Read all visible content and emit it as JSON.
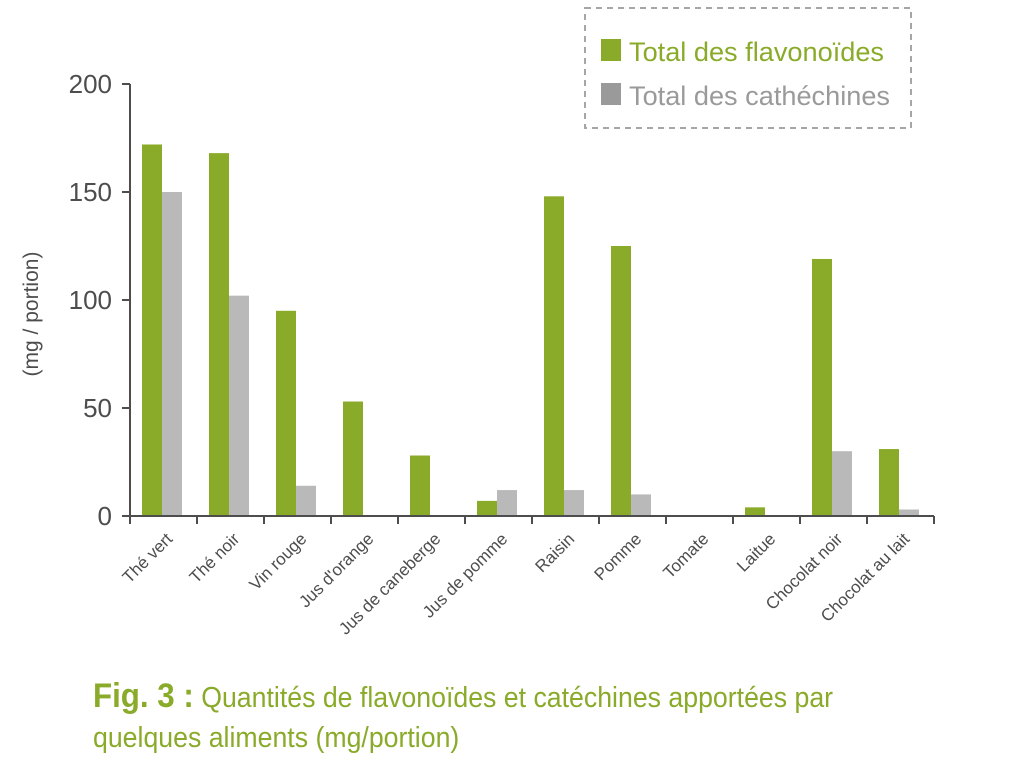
{
  "caption": {
    "fig_label": "Fig. 3 :",
    "text": "Quantités de flavonoïdes et catéchines apportées par quelques aliments (mg/portion)"
  },
  "colors": {
    "flavonoides": "#8aab2a",
    "catechines": "#b9b9b9",
    "axis": "#4d4d4d",
    "legend_border": "#a6a6a6"
  },
  "chart_data": {
    "type": "bar",
    "title": "",
    "xlabel": "",
    "ylabel": "(mg / portion)",
    "ylim": [
      0,
      200
    ],
    "yticks": [
      0,
      50,
      100,
      150,
      200
    ],
    "grid": false,
    "legend_position": "top-right",
    "categories": [
      "Thé vert",
      "Thé noir",
      "Vin rouge",
      "Jus d'orange",
      "Jus de caneberge",
      "Jus de pomme",
      "Raisin",
      "Pomme",
      "Tomate",
      "Laitue",
      "Chocolat noir",
      "Chocolat au lait"
    ],
    "series": [
      {
        "name": "Total des flavonoïdes",
        "values": [
          172,
          168,
          95,
          53,
          28,
          7,
          148,
          125,
          0,
          4,
          119,
          31
        ]
      },
      {
        "name": "Total des cathéchines",
        "values": [
          150,
          102,
          14,
          0,
          0,
          12,
          12,
          10,
          0,
          0,
          30,
          3
        ]
      }
    ]
  }
}
